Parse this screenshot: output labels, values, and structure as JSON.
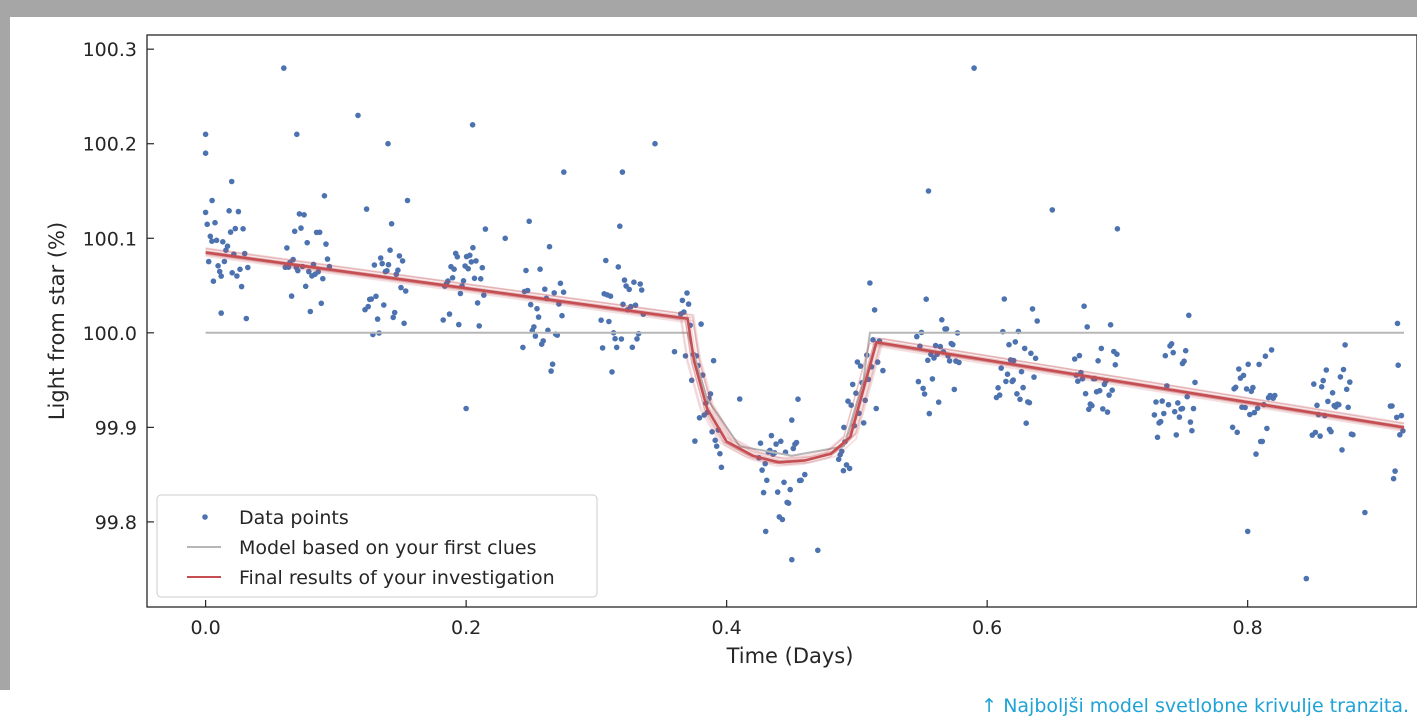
{
  "chart_data": {
    "type": "scatter",
    "xlabel": "Time (Days)",
    "ylabel": "Light from star (%)",
    "xlim": [
      -0.045,
      0.93
    ],
    "ylim": [
      99.71,
      100.315
    ],
    "xticks": [
      "0.0",
      "0.2",
      "0.4",
      "0.6",
      "0.8"
    ],
    "yticks": [
      "99.8",
      "99.9",
      "100.0",
      "100.1",
      "100.2",
      "100.3"
    ],
    "legend_position": "lower-left",
    "series": [
      {
        "name": "Data points",
        "kind": "scatter",
        "color": "#4c72b0",
        "x_range": [
          0.0,
          0.92
        ],
        "cadence_note": "dense periodic scatter around the transit model",
        "sample_points": [
          [
            0.0,
            100.21
          ],
          [
            0.0,
            100.19
          ],
          [
            0.005,
            100.14
          ],
          [
            0.012,
            100.06
          ],
          [
            0.02,
            100.16
          ],
          [
            0.06,
            100.28
          ],
          [
            0.07,
            100.21
          ],
          [
            0.095,
            100.07
          ],
          [
            0.117,
            100.23
          ],
          [
            0.14,
            100.2
          ],
          [
            0.155,
            100.14
          ],
          [
            0.2,
            99.92
          ],
          [
            0.205,
            100.22
          ],
          [
            0.23,
            100.1
          ],
          [
            0.275,
            100.17
          ],
          [
            0.32,
            100.17
          ],
          [
            0.345,
            100.2
          ],
          [
            0.36,
            99.98
          ],
          [
            0.41,
            99.93
          ],
          [
            0.43,
            99.79
          ],
          [
            0.45,
            99.76
          ],
          [
            0.46,
            99.85
          ],
          [
            0.47,
            99.77
          ],
          [
            0.49,
            99.9
          ],
          [
            0.52,
            99.96
          ],
          [
            0.555,
            100.15
          ],
          [
            0.59,
            100.28
          ],
          [
            0.62,
            99.95
          ],
          [
            0.65,
            100.13
          ],
          [
            0.7,
            100.11
          ],
          [
            0.75,
            99.92
          ],
          [
            0.8,
            99.79
          ],
          [
            0.845,
            99.74
          ],
          [
            0.89,
            99.81
          ],
          [
            0.915,
            100.01
          ]
        ]
      },
      {
        "name": "Model based on your first clues",
        "kind": "line",
        "color": "#b7b7b7",
        "x": [
          0.0,
          0.37,
          0.385,
          0.41,
          0.45,
          0.49,
          0.505,
          0.51,
          0.92
        ],
        "y": [
          100.0,
          100.0,
          99.93,
          99.88,
          99.87,
          99.88,
          99.95,
          100.0,
          100.0
        ]
      },
      {
        "name": "Final results of your investigation",
        "kind": "line",
        "color": "#c44e52",
        "x": [
          0.0,
          0.37,
          0.375,
          0.385,
          0.4,
          0.42,
          0.44,
          0.46,
          0.48,
          0.495,
          0.505,
          0.515,
          0.92
        ],
        "y": [
          100.085,
          100.015,
          99.97,
          99.92,
          99.885,
          99.87,
          99.863,
          99.865,
          99.872,
          99.89,
          99.94,
          99.99,
          99.9
        ]
      }
    ]
  },
  "caption": {
    "arrow": "↑",
    "text": "Najboljši model svetlobne krivulje tranzita."
  }
}
